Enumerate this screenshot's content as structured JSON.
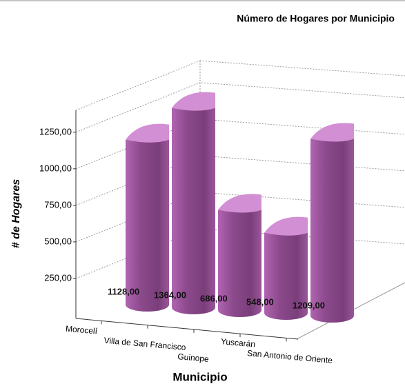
{
  "chart_data": {
    "type": "bar3d",
    "title": "Número de Hogares por Municipio",
    "y_label": "# de Hogares",
    "x_label": "Municipio",
    "categories": [
      "Morocelí",
      "Villa de San Francisco",
      "Guinope",
      "Yuscarán",
      "San Antonio de Oriente"
    ],
    "values": [
      1128,
      1364,
      686,
      548,
      1209
    ],
    "value_labels": [
      "1128,00",
      "1364,00",
      "686,00",
      "548,00",
      "1209,00"
    ],
    "color": "#8c4a8c",
    "ylim": [
      0,
      1400
    ],
    "yticks": [
      {
        "value": 250,
        "label": "250,00"
      },
      {
        "value": 500,
        "label": "500,00"
      },
      {
        "value": 750,
        "label": "750,00"
      },
      {
        "value": 1000,
        "label": "1000,00"
      },
      {
        "value": 1250,
        "label": "1250,00"
      }
    ],
    "grid": true
  }
}
